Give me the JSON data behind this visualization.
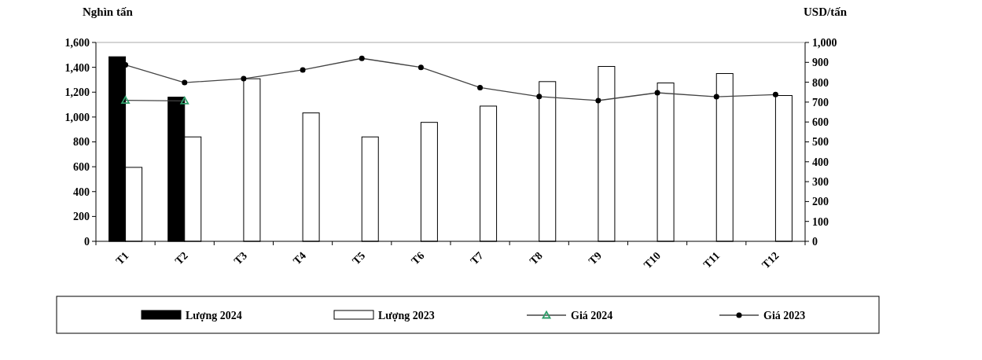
{
  "chart_data": {
    "type": "bar",
    "ylabel": "Nghìn tấn",
    "y2label": "USD/tấn",
    "categories": [
      "T1",
      "T2",
      "T3",
      "T4",
      "T5",
      "T6",
      "T7",
      "T8",
      "T9",
      "T10",
      "T11",
      "T12"
    ],
    "series": [
      {
        "name": "Lượng 2024",
        "color": "#000000",
        "values": [
          1485,
          1160,
          null,
          null,
          null,
          null,
          null,
          null,
          null,
          null,
          null,
          null
        ]
      },
      {
        "name": "Lượng 2023",
        "color": "#ffffff",
        "values": [
          595,
          840,
          1308,
          1033,
          840,
          957,
          1088,
          1285,
          1407,
          1274,
          1350,
          1173
        ]
      },
      {
        "name": "Giá 2024",
        "type": "line",
        "axis": "y2",
        "marker": "triangle",
        "color": "#2e9e6a",
        "values": [
          709,
          706,
          null,
          null,
          null,
          null,
          null,
          null,
          null,
          null,
          null,
          null
        ]
      },
      {
        "name": "Giá 2023",
        "type": "line",
        "axis": "y2",
        "marker": "circle",
        "color": "#000000",
        "values": [
          887,
          798,
          818,
          862,
          920,
          875,
          773,
          728,
          708,
          747,
          727,
          738
        ]
      }
    ],
    "ylim": [
      0,
      1600
    ],
    "yticks": [
      {
        "value": 0,
        "label": "0"
      },
      {
        "value": 200,
        "label": "200"
      },
      {
        "value": 400,
        "label": "400"
      },
      {
        "value": 600,
        "label": "600"
      },
      {
        "value": 800,
        "label": "800"
      },
      {
        "value": 1000,
        "label": "1,000"
      },
      {
        "value": 1200,
        "label": "1,200"
      },
      {
        "value": 1400,
        "label": "1,400"
      },
      {
        "value": 1600,
        "label": "1,600"
      }
    ],
    "y2lim": [
      0,
      1000
    ],
    "y2ticks": [
      {
        "value": 0,
        "label": "0"
      },
      {
        "value": 100,
        "label": "100"
      },
      {
        "value": 200,
        "label": "200"
      },
      {
        "value": 300,
        "label": "300"
      },
      {
        "value": 400,
        "label": "400"
      },
      {
        "value": 500,
        "label": "500"
      },
      {
        "value": 600,
        "label": "600"
      },
      {
        "value": 700,
        "label": "700"
      },
      {
        "value": 800,
        "label": "800"
      },
      {
        "value": 900,
        "label": "900"
      },
      {
        "value": 1000,
        "label": "1,000"
      }
    ],
    "legend": "bottom",
    "grid": false
  }
}
